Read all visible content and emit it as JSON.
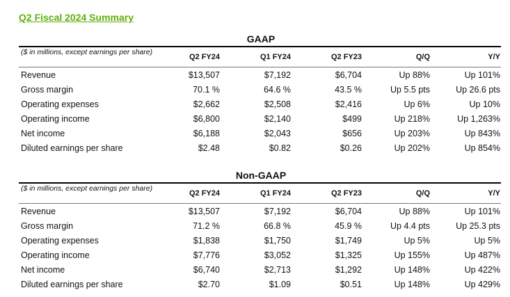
{
  "title": "Q2 Fiscal 2024 Summary",
  "sections": [
    {
      "heading": "GAAP",
      "note": "($ in millions, except earnings per share)",
      "columns": [
        "Q2 FY24",
        "Q1 FY24",
        "Q2 FY23",
        "Q/Q",
        "Y/Y"
      ],
      "rows": [
        [
          "Revenue",
          "$13,507",
          "$7,192",
          "$6,704",
          "Up 88%",
          "Up 101%"
        ],
        [
          "Gross margin",
          "70.1 %",
          "64.6 %",
          "43.5 %",
          "Up 5.5 pts",
          "Up 26.6 pts"
        ],
        [
          "Operating expenses",
          "$2,662",
          "$2,508",
          "$2,416",
          "Up 6%",
          "Up 10%"
        ],
        [
          "Operating income",
          "$6,800",
          "$2,140",
          "$499",
          "Up 218%",
          "Up 1,263%"
        ],
        [
          "Net income",
          "$6,188",
          "$2,043",
          "$656",
          "Up 203%",
          "Up 843%"
        ],
        [
          "Diluted earnings per share",
          "$2.48",
          "$0.82",
          "$0.26",
          "Up 202%",
          "Up 854%"
        ]
      ]
    },
    {
      "heading": "Non-GAAP",
      "note": "($ in millions, except earnings per share)",
      "columns": [
        "Q2 FY24",
        "Q1 FY24",
        "Q2 FY23",
        "Q/Q",
        "Y/Y"
      ],
      "rows": [
        [
          "Revenue",
          "$13,507",
          "$7,192",
          "$6,704",
          "Up 88%",
          "Up 101%"
        ],
        [
          "Gross margin",
          "71.2 %",
          "66.8 %",
          "45.9 %",
          "Up 4.4 pts",
          "Up 25.3 pts"
        ],
        [
          "Operating expenses",
          "$1,838",
          "$1,750",
          "$1,749",
          "Up 5%",
          "Up 5%"
        ],
        [
          "Operating income",
          "$7,776",
          "$3,052",
          "$1,325",
          "Up 155%",
          "Up 487%"
        ],
        [
          "Net income",
          "$6,740",
          "$2,713",
          "$1,292",
          "Up 148%",
          "Up 422%"
        ],
        [
          "Diluted earnings per share",
          "$2.70",
          "$1.09",
          "$0.51",
          "Up 148%",
          "Up 429%"
        ]
      ]
    }
  ]
}
